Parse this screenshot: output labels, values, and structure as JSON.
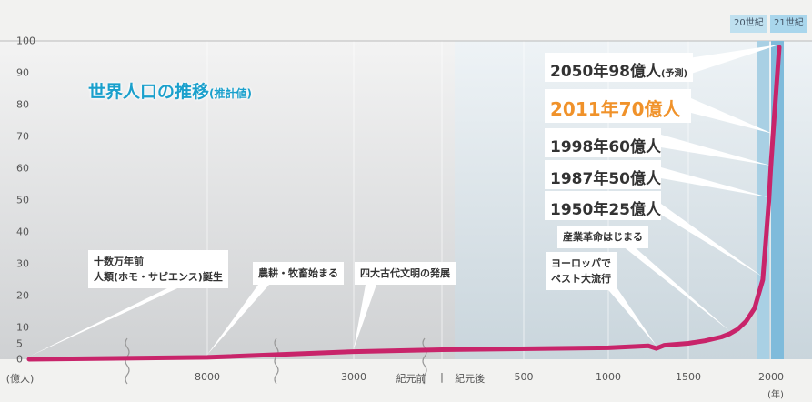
{
  "chart_data": {
    "type": "line",
    "title": "世界人口の推移",
    "subtitle": "(推計値)",
    "ylabel": "(億人)",
    "xlabel": "(年)",
    "ylim": [
      0,
      100
    ],
    "yticks": [
      "100",
      "90",
      "80",
      "70",
      "60",
      "50",
      "40",
      "30",
      "20",
      "10",
      "5",
      "0"
    ],
    "ytick_values": [
      100,
      90,
      80,
      70,
      60,
      50,
      40,
      30,
      20,
      10,
      5,
      0
    ],
    "xticks": [
      {
        "label": "8000",
        "year": -8000
      },
      {
        "label": "3000",
        "year": -3000
      },
      {
        "label": "紀元前",
        "year": -700
      },
      {
        "label": "|",
        "year": 0
      },
      {
        "label": "紀元後",
        "year": 170
      },
      {
        "label": "500",
        "year": 500
      },
      {
        "label": "1000",
        "year": 1000
      },
      {
        "label": "1500",
        "year": 1500
      },
      {
        "label": "2000",
        "year": 2000
      }
    ],
    "centuries": [
      "20世紀",
      "21世紀"
    ],
    "line_color": "#c8246a",
    "accent_color": "#f0922a",
    "title_color": "#1aa0cc",
    "series": [
      {
        "name": "世界人口",
        "points": [
          [
            -150000,
            0
          ],
          [
            -8000,
            0.6
          ],
          [
            -3000,
            2.4
          ],
          [
            0,
            3
          ],
          [
            1000,
            3.6
          ],
          [
            1250,
            4.2
          ],
          [
            1300,
            3.4
          ],
          [
            1350,
            4.4
          ],
          [
            1500,
            5
          ],
          [
            1600,
            5.8
          ],
          [
            1700,
            7
          ],
          [
            1750,
            8
          ],
          [
            1800,
            9.5
          ],
          [
            1850,
            12
          ],
          [
            1900,
            16
          ],
          [
            1950,
            25
          ],
          [
            1987,
            50
          ],
          [
            1998,
            60
          ],
          [
            2011,
            70
          ],
          [
            2050,
            98
          ]
        ]
      }
    ],
    "annotations": [
      {
        "text": "2050年98億人",
        "suffix": "(予測)",
        "year": 2050,
        "value": 98
      },
      {
        "text": "2011年70億人",
        "year": 2011,
        "value": 70
      },
      {
        "text": "1998年60億人",
        "year": 1998,
        "value": 60
      },
      {
        "text": "1987年50億人",
        "year": 1987,
        "value": 50
      },
      {
        "text": "1950年25億人",
        "year": 1950,
        "value": 25
      },
      {
        "text": "産業革命はじまる",
        "year": 1750,
        "value": 8
      },
      {
        "line1": "ヨーロッパで",
        "line2": "ペスト大流行",
        "year": 1300,
        "value": 3.4
      },
      {
        "line1": "十数万年前",
        "line2": "人類(ホモ・サピエンス)誕生",
        "year": -150000,
        "value": 0
      },
      {
        "text": "農耕・牧畜始まる",
        "year": -8000,
        "value": 0.6
      },
      {
        "text": "四大古代文明の発展",
        "year": -3000,
        "value": 2.4
      }
    ]
  }
}
